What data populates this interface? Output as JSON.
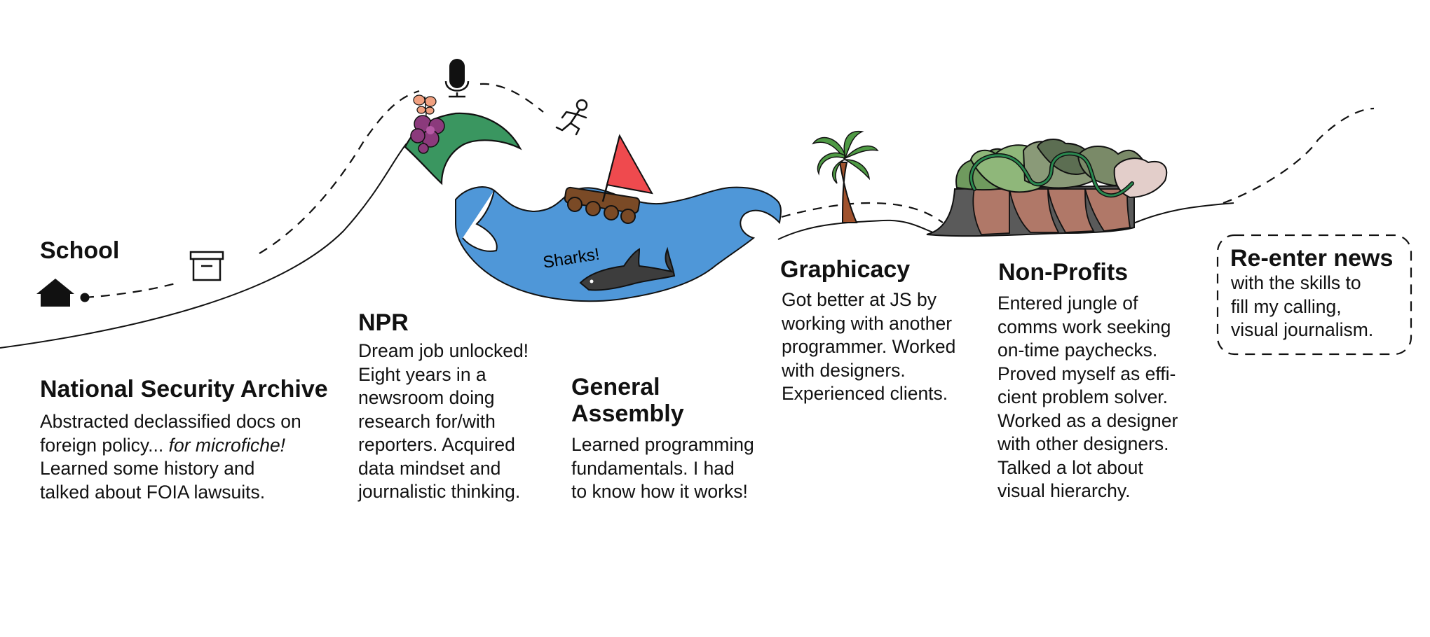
{
  "colors": {
    "hill_green": "#3a9660",
    "sea_blue": "#4f97d8",
    "sail_red": "#ef4a4e",
    "raft_brown": "#7a4a26",
    "shark_gray": "#3d3d3d",
    "flower_purple": "#8b3a7c",
    "butterfly_orange": "#f0a080",
    "tree_green": "#4f9a45",
    "outline": "#111111"
  },
  "icons": [
    "house-icon",
    "archive-box-icon",
    "microphone-icon",
    "flower-icon",
    "butterfly-icon",
    "running-person-icon",
    "sailboat-icon",
    "shark-icon",
    "palm-tree-icon",
    "jungle-trees-icon"
  ],
  "stops": [
    {
      "id": "school",
      "title": "School",
      "body": []
    },
    {
      "id": "nsa",
      "title": "National Security Archive",
      "body": [
        "Abstracted declassified docs on",
        "foreign policy...",
        "for microfiche!",
        "Learned some history and",
        "talked about FOIA lawsuits."
      ]
    },
    {
      "id": "npr",
      "title": "NPR",
      "body": [
        "Dream job unlocked!",
        "Eight years in a",
        "newsroom doing",
        "research for/with",
        "reporters. Acquired",
        "data mindset and",
        "journalistic thinking."
      ]
    },
    {
      "id": "ga",
      "title": "General",
      "title2": "Assembly",
      "body": [
        "Learned programming",
        "fundamentals. I had",
        "to know how it works!"
      ]
    },
    {
      "id": "graphicacy",
      "title": "Graphicacy",
      "body": [
        "Got better at JS by",
        "working with another",
        "programmer. Worked",
        "with designers.",
        "Experienced clients."
      ]
    },
    {
      "id": "nonprofits",
      "title": "Non-Profits",
      "body": [
        "Entered jungle of",
        "comms work seeking",
        "on-time paychecks.",
        "Proved myself as effi-",
        "cient problem solver.",
        "Worked as a designer",
        "with other designers.",
        "Talked a lot about",
        "visual hierarchy."
      ]
    },
    {
      "id": "reenter",
      "title": "Re-enter news",
      "body": [
        "with the skills to",
        "fill my calling,",
        "visual journalism."
      ]
    }
  ],
  "sea_label": "Sharks!"
}
